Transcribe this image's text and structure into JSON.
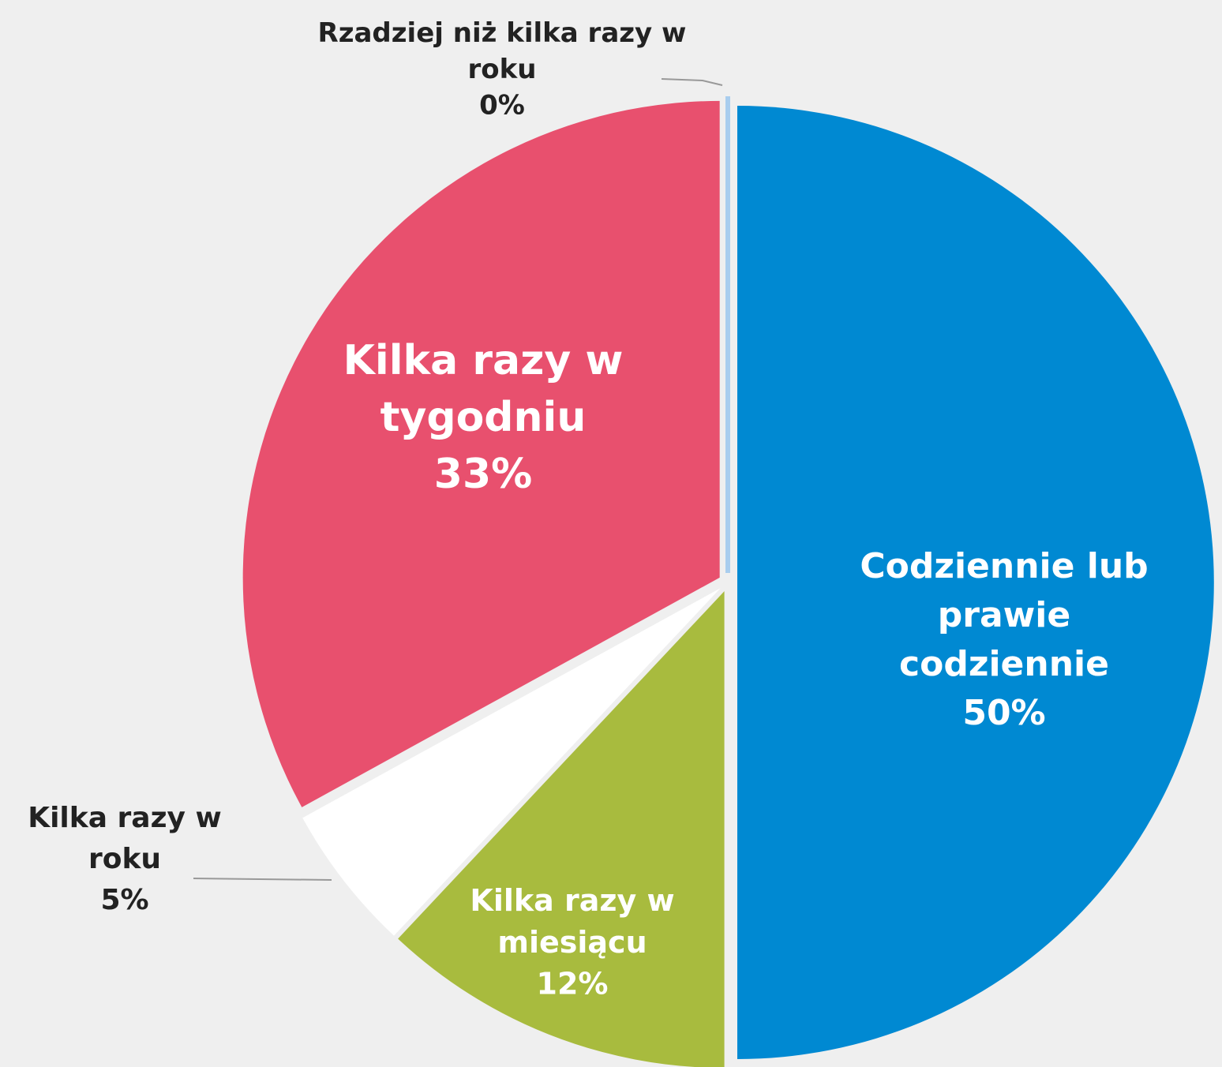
{
  "chart_data": {
    "type": "pie",
    "categories": [
      "Codziennie lub prawie codziennie",
      "Kilka razy w miesiącu",
      "Kilka razy w roku",
      "Kilka razy w tygodniu",
      "Rzadziej niż kilka razy w roku"
    ],
    "values": [
      50,
      12,
      5,
      33,
      0
    ],
    "value_labels": [
      "50%",
      "12%",
      "5%",
      "33%",
      "0%"
    ],
    "colors": [
      "#0089d2",
      "#a8bb3e",
      "#ffffff",
      "#e8506e",
      "#a9cdee"
    ]
  }
}
